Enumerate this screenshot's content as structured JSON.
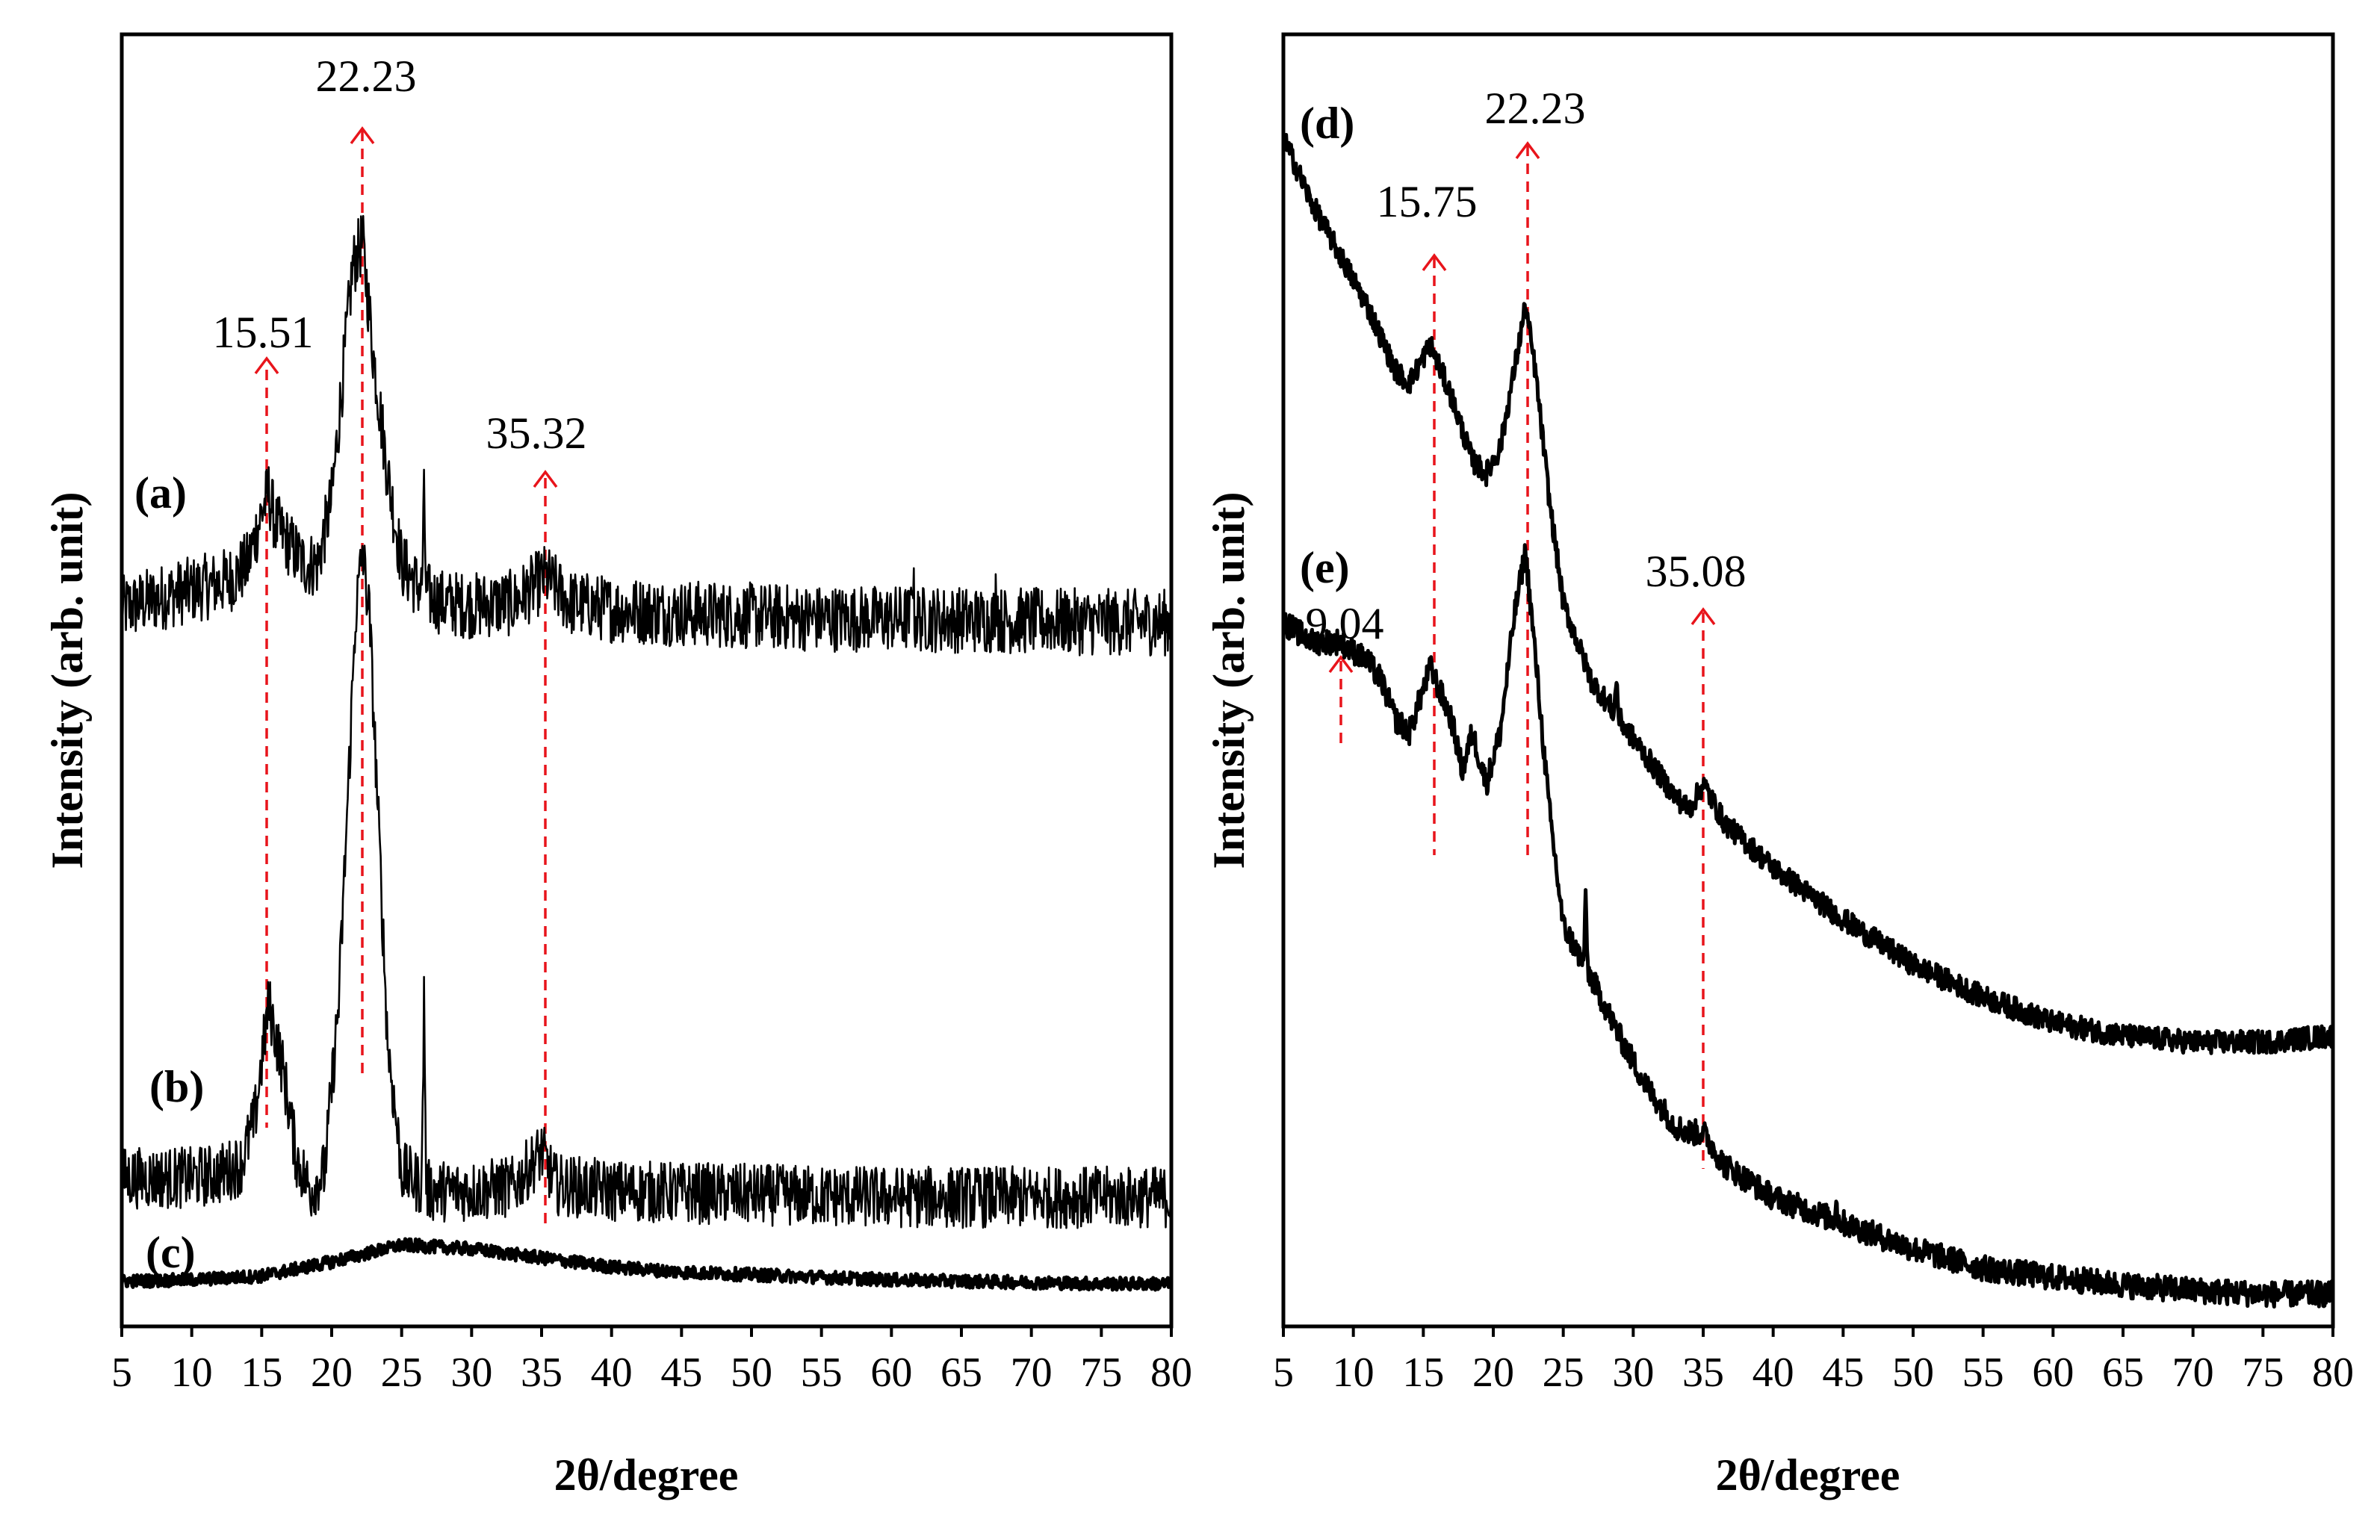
{
  "colors": {
    "trace": "#000000",
    "annotation": "#e8141b",
    "background": "#ffffff"
  },
  "chart_data": [
    {
      "panel": "left",
      "type": "line",
      "title": "",
      "xlabel": "2θ/degree",
      "ylabel": "Intensity (arb. unit)",
      "xlim": [
        5,
        80
      ],
      "ylim": [
        0,
        100
      ],
      "xticks": [
        5,
        10,
        15,
        20,
        25,
        30,
        35,
        40,
        45,
        50,
        55,
        60,
        65,
        70,
        75,
        80
      ],
      "yticks_shown": false,
      "series": [
        {
          "name": "(a)",
          "label": "(a)",
          "line_weight": "thin",
          "noise": 2.6,
          "x": [
            5,
            8,
            10,
            12,
            13,
            14,
            15,
            15.5,
            16,
            17,
            18,
            19,
            20,
            21,
            21.5,
            22.2,
            23,
            24,
            25,
            26,
            27,
            28,
            30,
            33,
            35.3,
            37,
            40,
            45,
            50,
            55,
            60,
            65,
            70,
            75,
            80
          ],
          "y": [
            55.5,
            56.5,
            57,
            57.5,
            58,
            59,
            63,
            64.5,
            62,
            60.5,
            59,
            59,
            64,
            76,
            82,
            84,
            75,
            66,
            59,
            57.5,
            56.5,
            56,
            55.8,
            56,
            58,
            56,
            55.5,
            55.2,
            55,
            54.8,
            54.8,
            54.7,
            54.6,
            54.5,
            54.5
          ],
          "spikes": [
            [
              26.6,
              7
            ],
            [
              61.5,
              4
            ],
            [
              67.5,
              3
            ]
          ]
        },
        {
          "name": "(b)",
          "label": "(b)",
          "line_weight": "thin",
          "noise": 2.4,
          "x": [
            5,
            8,
            10,
            12,
            13.5,
            14.5,
            15.5,
            16.5,
            17.5,
            18.5,
            19.5,
            20.5,
            21.2,
            21.7,
            22.2,
            22.7,
            23.3,
            24,
            25,
            27,
            30,
            33,
            35,
            36,
            40,
            50,
            60,
            70,
            80
          ],
          "y": [
            11.5,
            11.5,
            11.5,
            11.8,
            12.5,
            16,
            25,
            20,
            13,
            10.5,
            12,
            25,
            42,
            55,
            60,
            55,
            40,
            22,
            12,
            10.5,
            10.5,
            10.8,
            13.5,
            11,
            10.5,
            10.2,
            10,
            10,
            10
          ],
          "spikes": [
            [
              26.6,
              15
            ]
          ]
        },
        {
          "name": "(c)",
          "label": "(c)",
          "line_weight": "thick",
          "noise": 0.5,
          "x": [
            5,
            10,
            15,
            20,
            25,
            30,
            35,
            40,
            45,
            50,
            55,
            60,
            65,
            70,
            75,
            80
          ],
          "y": [
            3.5,
            3.6,
            3.9,
            5,
            6.3,
            6,
            5.3,
            4.6,
            4.2,
            4,
            3.8,
            3.6,
            3.5,
            3.4,
            3.3,
            3.3
          ],
          "spikes": []
        }
      ],
      "annotations": [
        {
          "label": "22.23",
          "x": 22.23
        },
        {
          "label": "15.51",
          "x": 15.51
        },
        {
          "label": "35.32",
          "x": 35.32
        }
      ]
    },
    {
      "panel": "right",
      "type": "line",
      "title": "",
      "xlabel": "2θ/degree",
      "ylabel": "Intensity (arb. unit)",
      "xlim": [
        5,
        80
      ],
      "ylim": [
        0,
        100
      ],
      "xticks": [
        5,
        10,
        15,
        20,
        25,
        30,
        35,
        40,
        45,
        50,
        55,
        60,
        65,
        70,
        75,
        80
      ],
      "yticks_shown": false,
      "series": [
        {
          "name": "(d)",
          "label": "(d)",
          "line_weight": "thick",
          "noise": 0.9,
          "x": [
            5,
            7,
            9,
            11,
            13,
            14,
            15.5,
            17,
            18.5,
            19.5,
            20.5,
            21.5,
            22.3,
            23,
            24,
            25,
            27,
            29,
            31,
            33,
            34,
            35,
            36.5,
            40,
            45,
            50,
            55,
            60,
            65,
            70,
            75,
            80
          ],
          "y": [
            92,
            87,
            83,
            79,
            74,
            73,
            76,
            72,
            67,
            66,
            68,
            74,
            79,
            74,
            64,
            56,
            50,
            47,
            44,
            41,
            40,
            42,
            39,
            35.5,
            31.5,
            28,
            25.5,
            23.5,
            22.5,
            22,
            22,
            22.5
          ],
          "spikes": [
            [
              28.8,
              3
            ]
          ]
        },
        {
          "name": "(e)",
          "label": "(e)",
          "line_weight": "thick",
          "noise": 1.0,
          "x": [
            5,
            7,
            9,
            11,
            12,
            13,
            14,
            15.5,
            17,
            17.8,
            18.5,
            19.5,
            20.5,
            21.5,
            22.3,
            23,
            24,
            25,
            27,
            29,
            31,
            33,
            34,
            35,
            36.5,
            40,
            45,
            50,
            55,
            60,
            65,
            70,
            75,
            80
          ],
          "y": [
            54.5,
            53,
            53,
            51.5,
            50,
            47,
            46,
            51,
            47,
            43,
            46,
            42,
            46,
            55,
            60,
            52,
            40,
            31,
            27,
            22.5,
            18.5,
            15.5,
            15,
            15,
            12.5,
            10,
            8,
            6,
            4.5,
            3.8,
            3.2,
            2.8,
            2.5,
            2.5
          ],
          "spikes": [
            [
              26.6,
              5
            ],
            [
              44.5,
              1.5
            ]
          ]
        }
      ],
      "annotations": [
        {
          "label": "22.23",
          "x": 22.23
        },
        {
          "label": "15.75",
          "x": 15.75
        },
        {
          "label": "9.04",
          "x": 9.04
        },
        {
          "label": "35.08",
          "x": 35.08
        }
      ]
    }
  ]
}
